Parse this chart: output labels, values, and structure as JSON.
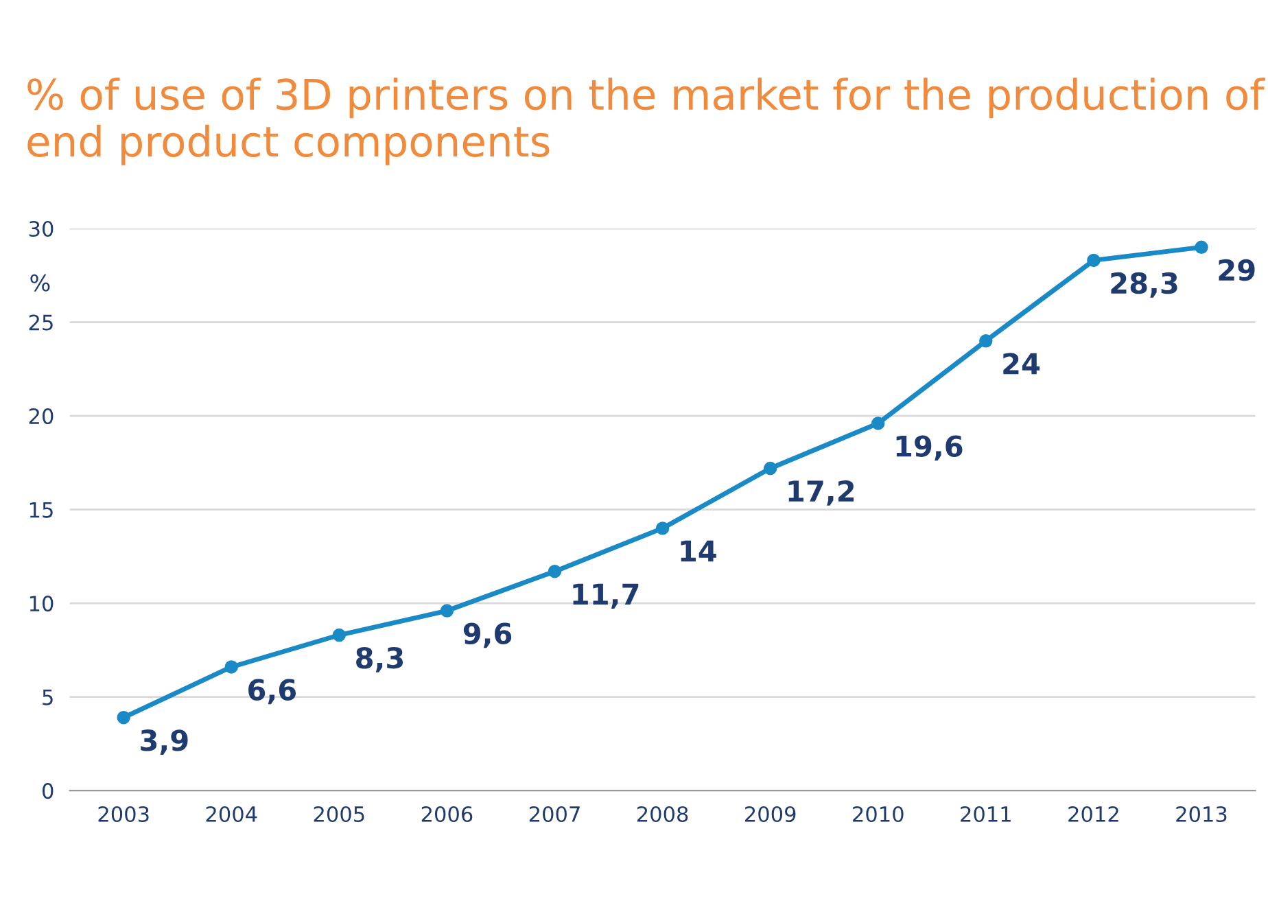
{
  "chart_data": {
    "type": "line",
    "title": "% of use of 3D printers on the market for the production of end product components",
    "ylabel": "%",
    "categories": [
      "2003",
      "2004",
      "2005",
      "2006",
      "2007",
      "2008",
      "2009",
      "2010",
      "2011",
      "2012",
      "2013"
    ],
    "series": [
      {
        "color": "#1a8ac6",
        "values": [
          3.9,
          6.6,
          8.3,
          9.6,
          11.7,
          14,
          17.2,
          19.6,
          24,
          28.3,
          29
        ],
        "value_labels": [
          "3,9",
          "6,6",
          "8,3",
          "9,6",
          "11,7",
          "14",
          "17,2",
          "19,6",
          "24",
          "28,3",
          "29"
        ]
      }
    ],
    "ylim": [
      0,
      30
    ],
    "yticks": [
      0,
      5,
      10,
      15,
      20,
      25,
      30
    ],
    "grid": "y",
    "marker": "circle",
    "line_style": "solid",
    "legend": false
  }
}
